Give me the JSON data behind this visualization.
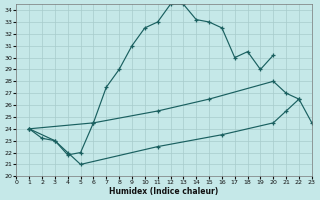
{
  "xlabel": "Humidex (Indice chaleur)",
  "background_color": "#c5e8e8",
  "grid_color": "#a8cccc",
  "line_color": "#1a6060",
  "xlim": [
    0,
    23
  ],
  "ylim": [
    20,
    34.5
  ],
  "xticks": [
    0,
    1,
    2,
    3,
    4,
    5,
    6,
    7,
    8,
    9,
    10,
    11,
    12,
    13,
    14,
    15,
    16,
    17,
    18,
    19,
    20,
    21,
    22,
    23
  ],
  "yticks": [
    20,
    21,
    22,
    23,
    24,
    25,
    26,
    27,
    28,
    29,
    30,
    31,
    32,
    33,
    34
  ],
  "line1_x": [
    1,
    2,
    3,
    4,
    5,
    6,
    7,
    8,
    9,
    10,
    11,
    12,
    13,
    14,
    15,
    16,
    17,
    18,
    19,
    20
  ],
  "line1_y": [
    24,
    23.2,
    23.0,
    21.8,
    22.0,
    24.5,
    27.5,
    29.0,
    31.0,
    32.5,
    33.0,
    34.5,
    34.5,
    33.2,
    33.0,
    32.5,
    30.0,
    30.5,
    29.0,
    30.2
  ],
  "line2_x": [
    1,
    6,
    11,
    15,
    20,
    21,
    22
  ],
  "line2_y": [
    24,
    24.5,
    25.5,
    26.5,
    28.0,
    27.0,
    26.5
  ],
  "line3_x": [
    1,
    3,
    4,
    5,
    11,
    16,
    20,
    21,
    22,
    23
  ],
  "line3_y": [
    24.0,
    23.0,
    22.0,
    21.0,
    22.5,
    23.5,
    24.5,
    25.5,
    26.5,
    24.5
  ]
}
